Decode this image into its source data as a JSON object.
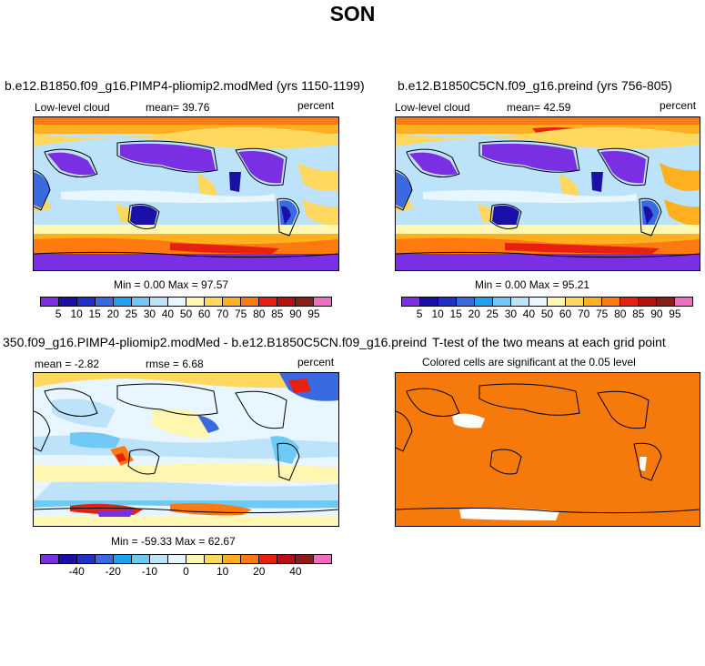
{
  "figure": {
    "title": "SON"
  },
  "panels": [
    {
      "id": "p1",
      "title": "b.e12.B1850.f09_g16.PIMP4-pliomip2.modMed (yrs 1150-1199)",
      "left_label": "Low-level cloud",
      "mean_label": "mean=  39.76",
      "right_label": "percent",
      "stats": "Min =    0.00 Max =   97.57"
    },
    {
      "id": "p2",
      "title": "b.e12.B1850C5CN.f09_g16.preind (yrs 756-805)",
      "left_label": "Low-level cloud",
      "mean_label": "mean=  42.59",
      "right_label": "percent",
      "stats": "Min =    0.00 Max =   95.21"
    },
    {
      "id": "p3",
      "title": "350.f09_g16.PIMP4-pliomip2.modMed - b.e12.B1850C5CN.f09_g16.preind",
      "left_label": "mean =  -2.82",
      "mean_label": "rmse =   6.68",
      "right_label": "percent",
      "stats": "Min = -59.33 Max =  62.67"
    },
    {
      "id": "p4",
      "title": "T-test of the two means at each grid point",
      "subtitle": "Colored cells are significant at the 0.05 level"
    }
  ],
  "colorbars": {
    "absolute": {
      "labels": [
        "5",
        "10",
        "15",
        "20",
        "25",
        "30",
        "40",
        "50",
        "60",
        "70",
        "75",
        "80",
        "85",
        "90",
        "95"
      ],
      "colors": [
        "#7b2fe3",
        "#1a0fa8",
        "#2030c8",
        "#3a6ae0",
        "#20a0f0",
        "#70c8f5",
        "#bde3fb",
        "#e8f6ff",
        "#fff6b0",
        "#ffd860",
        "#ffb020",
        "#ff7a10",
        "#e82010",
        "#b81010",
        "#8a1f1a",
        "#f06ec0"
      ]
    },
    "difference": {
      "labels": [
        "-40",
        "-20",
        "-10",
        "0",
        "10",
        "20",
        "40"
      ],
      "colors": [
        "#7b2fe3",
        "#1a0fa8",
        "#2030c8",
        "#3a6ae0",
        "#20a0f0",
        "#70c8f5",
        "#bde3fb",
        "#e8f6ff",
        "#fff6b0",
        "#ffd860",
        "#ffb020",
        "#ff7a10",
        "#e82010",
        "#b81010",
        "#8a1f1a",
        "#f06ec0"
      ]
    }
  },
  "ttest_color": "#f57a0b"
}
